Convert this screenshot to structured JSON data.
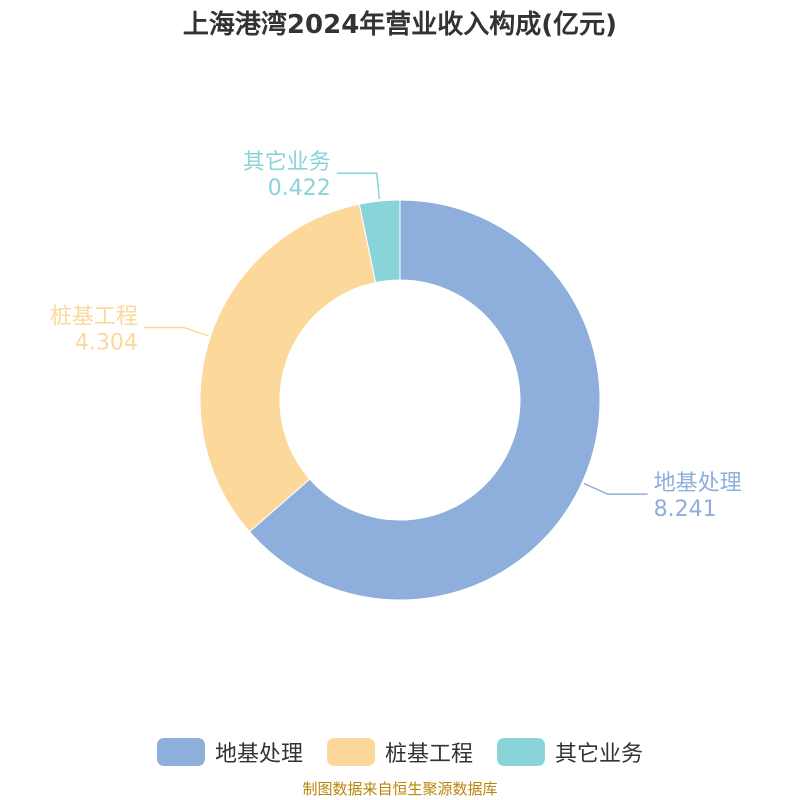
{
  "title": "上海港湾2024年营业收入构成(亿元)",
  "source": "制图数据来自恒生聚源数据库",
  "chart_data": {
    "type": "pie",
    "donut": true,
    "title": "上海港湾2024年营业收入构成(亿元)",
    "categories": [
      "地基处理",
      "桩基工程",
      "其它业务"
    ],
    "values": [
      8.241,
      4.304,
      0.422
    ],
    "value_labels": [
      "8.241",
      "4.304",
      "0.422"
    ],
    "colors": [
      "#8eaedb",
      "#fdd89b",
      "#88d4d8"
    ],
    "legend_position": "bottom"
  }
}
